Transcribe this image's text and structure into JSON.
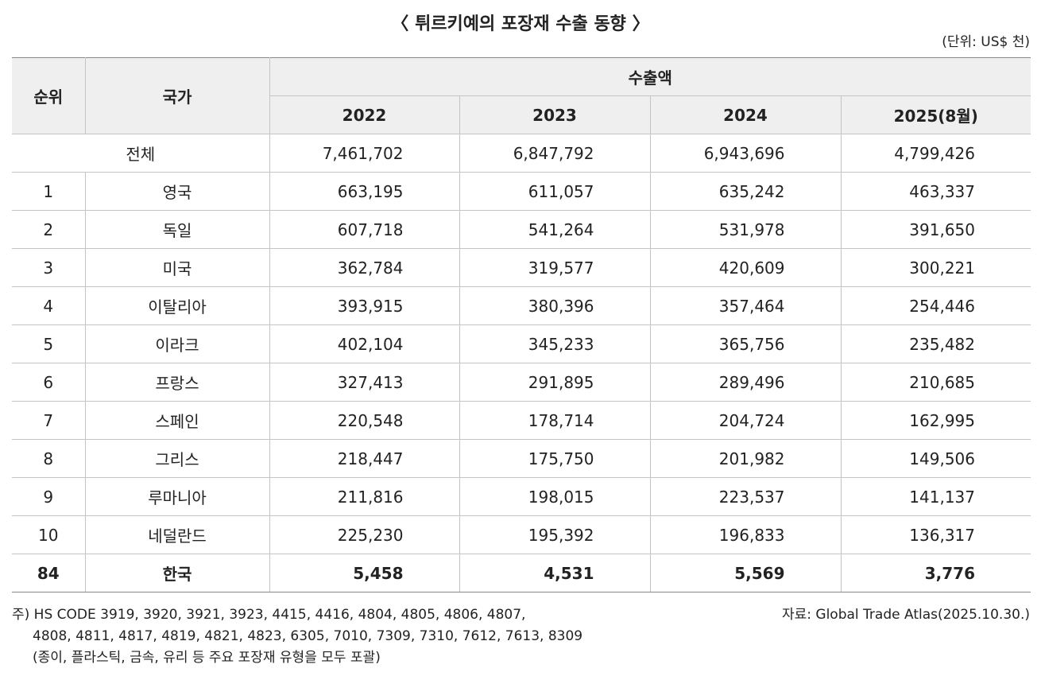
{
  "title": "〈 튀르키예의 포장재 수출 동향 〉",
  "unit": "(단위: US$ 천)",
  "table": {
    "header": {
      "rank": "순위",
      "country": "국가",
      "exports": "수출액",
      "years": [
        "2022",
        "2023",
        "2024",
        "2025(8월)"
      ]
    },
    "total": {
      "label": "전체",
      "values": [
        "7,461,702",
        "6,847,792",
        "6,943,696",
        "4,799,426"
      ]
    },
    "rows": [
      [
        "1",
        "영국",
        "663,195",
        "611,057",
        "635,242",
        "463,337"
      ],
      [
        "2",
        "독일",
        "607,718",
        "541,264",
        "531,978",
        "391,650"
      ],
      [
        "3",
        "미국",
        "362,784",
        "319,577",
        "420,609",
        "300,221"
      ],
      [
        "4",
        "이탈리아",
        "393,915",
        "380,396",
        "357,464",
        "254,446"
      ],
      [
        "5",
        "이라크",
        "402,104",
        "345,233",
        "365,756",
        "235,482"
      ],
      [
        "6",
        "프랑스",
        "327,413",
        "291,895",
        "289,496",
        "210,685"
      ],
      [
        "7",
        "스페인",
        "220,548",
        "178,714",
        "204,724",
        "162,995"
      ],
      [
        "8",
        "그리스",
        "218,447",
        "175,750",
        "201,982",
        "149,506"
      ],
      [
        "9",
        "루마니아",
        "211,816",
        "198,015",
        "223,537",
        "141,137"
      ],
      [
        "10",
        "네덜란드",
        "225,230",
        "195,392",
        "196,833",
        "136,317"
      ],
      [
        "84",
        "한국",
        "5,458",
        "4,531",
        "5,569",
        "3,776"
      ]
    ]
  },
  "notes": [
    "주) HS CODE 3919, 3920, 3921, 3923, 4415, 4416, 4804, 4805, 4806, 4807,",
    "4808, 4811, 4817, 4819, 4821, 4823, 6305, 7010, 7309, 7310, 7612, 7613, 8309",
    "(종이, 플라스틱, 금속, 유리 등 주요 포장재 유형을 모두 포괄)"
  ],
  "source": "자료: Global Trade Atlas(2025.10.30.)"
}
